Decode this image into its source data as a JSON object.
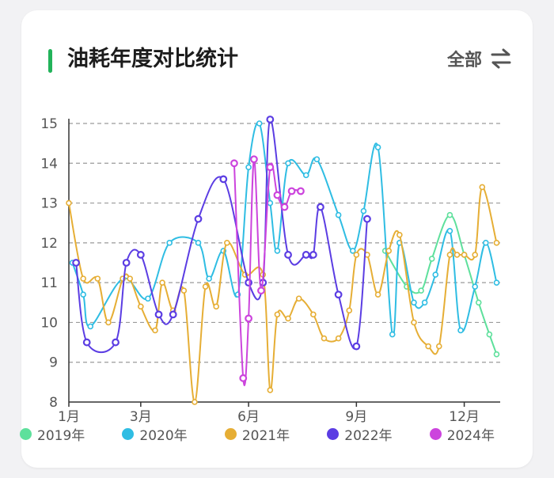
{
  "header": {
    "title": "油耗年度对比统计",
    "filter_label": "全部",
    "accent_color": "#22b35a"
  },
  "chart_data": {
    "type": "line",
    "title": "油耗年度对比统计",
    "xlabel": "",
    "ylabel": "",
    "xlim": [
      1,
      13
    ],
    "ylim": [
      8,
      15
    ],
    "x_ticks": [
      {
        "value": 1,
        "label": "1月"
      },
      {
        "value": 3,
        "label": "3月"
      },
      {
        "value": 6,
        "label": "6月"
      },
      {
        "value": 9,
        "label": "9月"
      },
      {
        "value": 12,
        "label": "12月"
      }
    ],
    "y_ticks": [
      8,
      9,
      10,
      11,
      12,
      13,
      14,
      15
    ],
    "grid": "horizontal dashed",
    "legend_position": "bottom",
    "series": [
      {
        "name": "2019年",
        "color": "#5ee09c",
        "x": [
          9.8,
          10.4,
          10.8,
          11.1,
          11.6,
          12.0,
          12.4,
          12.7,
          12.9
        ],
        "y": [
          11.8,
          10.9,
          10.8,
          11.6,
          12.7,
          11.7,
          10.5,
          9.7,
          9.2
        ]
      },
      {
        "name": "2020年",
        "color": "#2fbde3",
        "x": [
          1.1,
          1.4,
          1.6,
          2.5,
          3.2,
          3.8,
          4.6,
          4.9,
          5.3,
          5.7,
          6.0,
          6.3,
          6.6,
          6.8,
          7.1,
          7.6,
          7.9,
          8.5,
          8.9,
          9.2,
          9.6,
          10.0,
          10.2,
          10.6,
          10.9,
          11.2,
          11.6,
          11.9,
          12.3,
          12.6,
          12.9
        ],
        "y": [
          11.5,
          10.7,
          9.9,
          11.1,
          10.6,
          12.0,
          12.0,
          11.1,
          11.8,
          10.7,
          13.9,
          15.0,
          13.0,
          11.8,
          14.0,
          13.7,
          14.1,
          12.7,
          11.8,
          12.8,
          14.4,
          9.7,
          12.0,
          10.5,
          10.5,
          11.2,
          12.3,
          9.8,
          10.9,
          12.0,
          11.0
        ]
      },
      {
        "name": "2021年",
        "color": "#e6ae35",
        "x": [
          1.0,
          1.4,
          1.8,
          2.1,
          2.5,
          2.7,
          3.0,
          3.4,
          3.6,
          3.9,
          4.2,
          4.5,
          4.8,
          5.1,
          5.4,
          5.9,
          6.4,
          6.6,
          6.8,
          7.1,
          7.4,
          7.8,
          8.1,
          8.5,
          8.8,
          9.0,
          9.3,
          9.6,
          9.9,
          10.2,
          10.6,
          11.0,
          11.3,
          11.6,
          11.8,
          12.0,
          12.3,
          12.5,
          12.9
        ],
        "y": [
          13.0,
          11.1,
          11.1,
          10.0,
          11.1,
          11.1,
          10.4,
          9.8,
          11.0,
          10.3,
          10.8,
          8.0,
          10.9,
          10.4,
          12.0,
          11.2,
          11.2,
          8.3,
          10.2,
          10.1,
          10.6,
          10.2,
          9.6,
          9.6,
          10.3,
          11.7,
          11.7,
          10.7,
          11.8,
          12.2,
          10.0,
          9.4,
          9.4,
          11.7,
          11.7,
          11.7,
          11.7,
          13.4,
          12.0
        ]
      },
      {
        "name": "2022年",
        "color": "#5b3de3",
        "x": [
          1.2,
          1.5,
          2.3,
          2.6,
          3.0,
          3.5,
          3.9,
          4.6,
          5.3,
          6.0,
          6.4,
          6.6,
          7.1,
          7.6,
          7.8,
          8.0,
          8.5,
          9.0,
          9.3
        ],
        "y": [
          11.5,
          9.5,
          9.5,
          11.5,
          11.7,
          10.2,
          10.2,
          12.6,
          13.6,
          11.0,
          11.0,
          15.1,
          11.7,
          11.7,
          11.7,
          12.9,
          10.7,
          9.4,
          12.6
        ]
      },
      {
        "name": "2024年",
        "color": "#cc44dd",
        "x": [
          5.6,
          5.85,
          6.0,
          6.15,
          6.35,
          6.6,
          6.8,
          7.0,
          7.2,
          7.45
        ],
        "y": [
          14.0,
          8.6,
          10.1,
          14.1,
          10.8,
          13.9,
          13.2,
          12.9,
          13.3,
          13.3
        ]
      }
    ]
  }
}
